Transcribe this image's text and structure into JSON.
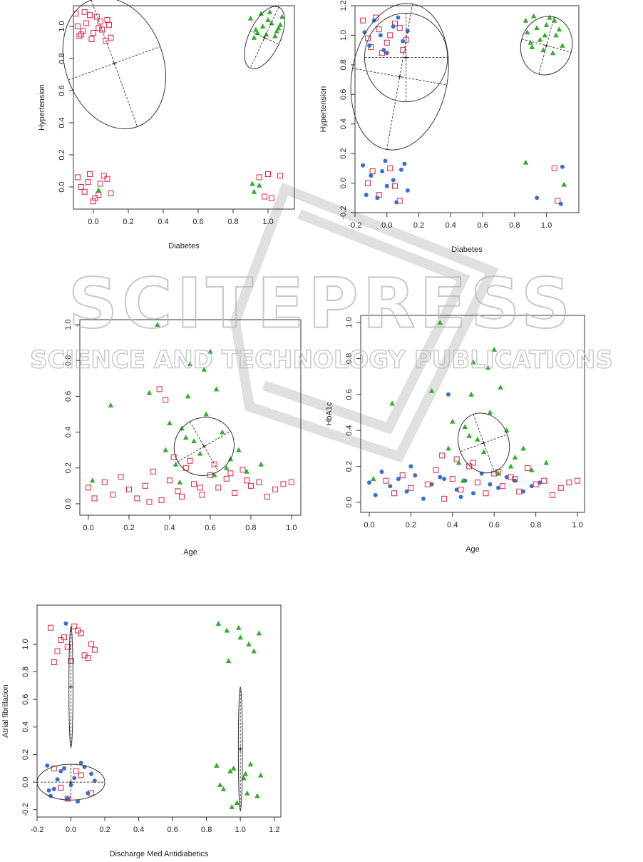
{
  "watermark": {
    "title": "SCITEPRESS",
    "subtitle": "SCIENCE AND TECHNOLOGY PUBLICATIONS"
  },
  "chart_data": [
    {
      "type": "scatter",
      "xlabel": "Diabetes",
      "ylabel": "Hypertension",
      "xlim": [
        -0.114,
        1.151
      ],
      "ylim": [
        -0.138,
        1.129
      ],
      "xticks": [
        {
          "value": 0,
          "label": "0.0"
        },
        0.2,
        0.4,
        0.6,
        0.8,
        {
          "value": 1,
          "label": "1.0"
        }
      ],
      "yticks": [
        {
          "value": 0,
          "label": "0.0"
        },
        0.2,
        0.4,
        0.6,
        0.8,
        {
          "value": 1,
          "label": "1.0"
        }
      ],
      "series": [
        {
          "color": "#d8253f",
          "marker": "square",
          "x": [
            -0.1,
            -0.07,
            -0.04,
            -0.01,
            0.02,
            0.05,
            0.08,
            0.1,
            -0.09,
            -0.05,
            0.0,
            0.04,
            0.07,
            -0.08,
            -0.02,
            0.03,
            0.09,
            -0.06,
            -0.09,
            -0.05,
            -0.02,
            0.01,
            0.04,
            0.08,
            0.1,
            -0.07,
            0.0,
            0.06,
            -0.03,
            0.03,
            0.95,
            1.0,
            1.02,
            1.07,
            0.98
          ],
          "y": [
            1.08,
            0.95,
            1.02,
            0.92,
            1.06,
            0.98,
            1.04,
            0.93,
            1.0,
            1.09,
            0.96,
            1.03,
            0.91,
            0.94,
            1.07,
            0.99,
            1.01,
            0.97,
            0.06,
            -0.03,
            0.08,
            -0.07,
            0.02,
            0.05,
            -0.04,
            0.0,
            -0.09,
            0.07,
            0.03,
            -0.05,
            0.06,
            0.08,
            -0.07,
            0.07,
            -0.06
          ]
        },
        {
          "color": "#33ad2f",
          "marker": "triangle",
          "x": [
            0.9,
            0.93,
            0.96,
            0.99,
            1.02,
            1.05,
            1.08,
            0.92,
            0.97,
            1.01,
            1.04,
            1.07,
            0.94,
            1.0,
            1.06,
            0.91,
            0.92,
            0.95,
            0.03
          ],
          "y": [
            1.05,
            0.98,
            1.08,
            0.95,
            1.02,
            0.97,
            1.06,
            0.93,
            1.0,
            1.09,
            0.94,
            1.01,
            0.96,
            1.04,
            0.99,
            0.02,
            -0.03,
            0.01,
            -0.02
          ]
        }
      ],
      "ellipses": [
        {
          "cx": 0.12,
          "cy": 0.77,
          "rx": 0.28,
          "ry": 0.42,
          "angle": -20
        },
        {
          "cx": 0.98,
          "cy": 0.93,
          "rx": 0.09,
          "ry": 0.21,
          "angle": 25
        }
      ]
    },
    {
      "type": "scatter",
      "xlabel": "Diabetes",
      "ylabel": "Hypertension",
      "xlim": [
        -0.2,
        1.203
      ],
      "ylim": [
        -0.2,
        1.2
      ],
      "xticks": [
        -0.2,
        {
          "value": 0,
          "label": "0.0"
        },
        0.2,
        0.4,
        0.6,
        0.8,
        {
          "value": 1,
          "label": "1.0"
        }
      ],
      "yticks": [
        -0.2,
        {
          "value": 0,
          "label": "0.0"
        },
        0.2,
        0.4,
        0.6,
        0.8,
        {
          "value": 1,
          "label": "1.0"
        },
        1.2
      ],
      "series": [
        {
          "color": "#d8253f",
          "marker": "square",
          "x": [
            -0.15,
            -0.1,
            -0.05,
            0.0,
            0.05,
            0.1,
            -0.12,
            -0.07,
            0.02,
            0.08,
            -0.03,
            0.12,
            -0.12,
            -0.05,
            0.02,
            0.08,
            -0.09,
            0.05,
            1.07,
            1.05
          ],
          "y": [
            1.1,
            0.92,
            1.04,
            0.95,
            1.08,
            0.9,
            0.98,
            1.12,
            1.0,
            1.05,
            0.88,
            0.97,
            0.0,
            -0.08,
            0.1,
            -0.12,
            0.08,
            -0.02,
            -0.12,
            0.1
          ]
        },
        {
          "color": "#3a6fd0",
          "marker": "circle",
          "x": [
            -0.14,
            -0.08,
            -0.02,
            0.04,
            0.1,
            -0.11,
            -0.04,
            0.07,
            0.13,
            0.0,
            -0.15,
            -0.1,
            -0.06,
            -0.01,
            0.04,
            0.09,
            0.13,
            -0.13,
            -0.03,
            0.06,
            0.11,
            0.0,
            0.94,
            1.1,
            1.09
          ],
          "y": [
            1.02,
            1.1,
            0.9,
            1.06,
            0.96,
            0.93,
            1.0,
            1.12,
            1.03,
            0.88,
            0.12,
            0.05,
            -0.1,
            0.15,
            0.02,
            0.09,
            -0.05,
            -0.08,
            0.08,
            -0.13,
            0.13,
            -0.02,
            -0.1,
            0.11,
            -0.14
          ]
        },
        {
          "color": "#33ad2f",
          "marker": "triangle",
          "x": [
            0.87,
            0.9,
            0.94,
            0.98,
            1.02,
            1.06,
            1.1,
            0.88,
            0.92,
            0.96,
            1.0,
            1.04,
            1.08,
            0.91,
            0.99,
            1.05,
            0.87,
            1.11
          ],
          "y": [
            1.1,
            0.95,
            1.05,
            0.9,
            1.12,
            1.0,
            0.93,
            1.02,
            1.13,
            0.97,
            1.07,
            0.88,
            1.04,
            0.92,
            1.0,
            1.1,
            0.14,
            -0.01
          ]
        }
      ],
      "ellipses": [
        {
          "cx": 0.08,
          "cy": 0.72,
          "rx": 0.3,
          "ry": 0.5,
          "angle": 10
        },
        {
          "cx": 0.12,
          "cy": 0.85,
          "rx": 0.26,
          "ry": 0.3,
          "angle": 0
        },
        {
          "cx": 1.0,
          "cy": 0.93,
          "rx": 0.16,
          "ry": 0.2,
          "angle": 15
        }
      ]
    },
    {
      "type": "scatter",
      "xlabel": "Age",
      "xlim": [
        -0.042,
        1.046
      ],
      "ylim": [
        -0.064,
        1.028
      ],
      "xticks": [
        {
          "value": 0,
          "label": "0.0"
        },
        0.2,
        0.4,
        0.6,
        0.8,
        {
          "value": 1,
          "label": "1.0"
        }
      ],
      "yticks": [
        {
          "value": 0,
          "label": "0.0"
        },
        0.2,
        0.4,
        0.6,
        0.8,
        {
          "value": 1,
          "label": "1.0"
        }
      ],
      "series": [
        {
          "color": "#d8253f",
          "marker": "square",
          "x": [
            0.0,
            0.03,
            0.08,
            0.12,
            0.16,
            0.2,
            0.24,
            0.28,
            0.32,
            0.36,
            0.4,
            0.44,
            0.48,
            0.52,
            0.56,
            0.6,
            0.64,
            0.68,
            0.72,
            0.76,
            0.8,
            0.84,
            0.88,
            0.92,
            0.96,
            1.0,
            0.35,
            0.38,
            0.42,
            0.5,
            0.55,
            0.62,
            0.7,
            0.78,
            0.3,
            0.46
          ],
          "y": [
            0.09,
            0.03,
            0.12,
            0.05,
            0.15,
            0.08,
            0.03,
            0.1,
            0.18,
            0.02,
            0.13,
            0.07,
            0.2,
            0.11,
            0.05,
            0.16,
            0.09,
            0.14,
            0.06,
            0.19,
            0.1,
            0.12,
            0.04,
            0.08,
            0.11,
            0.12,
            0.64,
            0.58,
            0.26,
            0.24,
            0.09,
            0.22,
            0.17,
            0.13,
            0.01,
            0.04
          ]
        },
        {
          "color": "#33ad2f",
          "marker": "triangle",
          "x": [
            0.02,
            0.11,
            0.34,
            0.3,
            0.38,
            0.4,
            0.43,
            0.46,
            0.49,
            0.52,
            0.55,
            0.58,
            0.6,
            0.63,
            0.66,
            0.7,
            0.74,
            0.78,
            0.85,
            0.5,
            0.57,
            0.62,
            0.45,
            0.68,
            0.48
          ],
          "y": [
            0.13,
            0.55,
            1.0,
            0.62,
            0.3,
            0.45,
            0.22,
            0.42,
            0.6,
            0.35,
            0.28,
            0.5,
            0.85,
            0.64,
            0.4,
            0.25,
            0.3,
            0.18,
            0.22,
            0.78,
            0.75,
            0.16,
            0.12,
            0.2,
            0.37
          ]
        }
      ],
      "ellipses": [
        {
          "cx": 0.57,
          "cy": 0.32,
          "rx": 0.15,
          "ry": 0.16,
          "angle": -30
        }
      ]
    },
    {
      "type": "scatter",
      "xlabel": "Age",
      "ylabel": "HbA1c",
      "xlim": [
        -0.041,
        1.034
      ],
      "ylim": [
        -0.056,
        1.04
      ],
      "xticks": [
        {
          "value": 0,
          "label": "0.0"
        },
        0.2,
        0.4,
        0.6,
        0.8,
        {
          "value": 1,
          "label": "1.0"
        }
      ],
      "yticks": [
        {
          "value": 0,
          "label": "0.0"
        },
        0.2,
        0.4,
        0.6,
        0.8,
        {
          "value": 1,
          "label": "1.0"
        }
      ],
      "series": [
        {
          "color": "#3a6fd0",
          "marker": "circle",
          "x": [
            0.0,
            0.03,
            0.06,
            0.1,
            0.14,
            0.18,
            0.22,
            0.26,
            0.3,
            0.34,
            0.38,
            0.42,
            0.46,
            0.5,
            0.54,
            0.58,
            0.62,
            0.66,
            0.7,
            0.74,
            0.78,
            0.82,
            0.2,
            0.36,
            0.44
          ],
          "y": [
            0.11,
            0.04,
            0.17,
            0.09,
            0.13,
            0.06,
            0.15,
            0.02,
            0.1,
            0.14,
            0.6,
            0.07,
            0.12,
            0.05,
            0.16,
            0.1,
            0.08,
            0.14,
            0.12,
            0.06,
            0.09,
            0.11,
            0.2,
            0.13,
            0.03
          ]
        },
        {
          "color": "#d8253f",
          "marker": "square",
          "x": [
            0.08,
            0.12,
            0.16,
            0.2,
            0.28,
            0.32,
            0.36,
            0.4,
            0.44,
            0.48,
            0.52,
            0.56,
            0.6,
            0.64,
            0.68,
            0.72,
            0.76,
            0.8,
            0.84,
            0.88,
            0.92,
            0.96,
            1.0,
            0.35,
            0.42,
            0.5,
            0.62,
            0.7
          ],
          "y": [
            0.12,
            0.05,
            0.15,
            0.08,
            0.1,
            0.18,
            0.02,
            0.13,
            0.07,
            0.2,
            0.11,
            0.05,
            0.16,
            0.09,
            0.14,
            0.06,
            0.19,
            0.1,
            0.12,
            0.04,
            0.08,
            0.11,
            0.12,
            0.26,
            0.24,
            0.22,
            0.17,
            0.13
          ]
        },
        {
          "color": "#33ad2f",
          "marker": "triangle",
          "x": [
            0.02,
            0.11,
            0.34,
            0.3,
            0.38,
            0.4,
            0.43,
            0.46,
            0.49,
            0.52,
            0.55,
            0.58,
            0.6,
            0.63,
            0.66,
            0.7,
            0.74,
            0.78,
            0.85,
            0.5,
            0.57,
            0.62,
            0.45,
            0.68,
            0.48
          ],
          "y": [
            0.13,
            0.55,
            1.0,
            0.62,
            0.3,
            0.45,
            0.22,
            0.42,
            0.6,
            0.35,
            0.28,
            0.5,
            0.85,
            0.64,
            0.4,
            0.25,
            0.3,
            0.18,
            0.22,
            0.78,
            0.75,
            0.16,
            0.12,
            0.2,
            0.37
          ]
        }
      ],
      "ellipses": [
        {
          "cx": 0.55,
          "cy": 0.33,
          "rx": 0.12,
          "ry": 0.17,
          "angle": -20
        }
      ]
    },
    {
      "type": "scatter",
      "xlabel": "Discharge Med Antidiabetics",
      "ylabel": "Atrial fibrillation",
      "xlim": [
        -0.2,
        1.239
      ],
      "ylim": [
        -0.253,
        1.284
      ],
      "xticks": [
        -0.2,
        {
          "value": 0,
          "label": "0.0"
        },
        0.2,
        0.4,
        0.6,
        0.8,
        {
          "value": 1,
          "label": "1.0"
        },
        1.2
      ],
      "yticks": [
        -0.2,
        {
          "value": 0,
          "label": "0.0"
        },
        0.2,
        0.4,
        0.6,
        0.8,
        {
          "value": 1,
          "label": "1.0"
        }
      ],
      "series": [
        {
          "color": "#d8253f",
          "marker": "square",
          "x": [
            -0.12,
            -0.08,
            -0.04,
            0.0,
            0.04,
            0.08,
            0.12,
            -0.1,
            -0.02,
            0.06,
            0.1,
            -0.06,
            0.02,
            0.14,
            -0.1,
            -0.02,
            0.06,
            0.12,
            -0.06,
            0.03
          ],
          "y": [
            1.12,
            0.95,
            1.05,
            0.88,
            1.1,
            0.92,
            1.0,
            0.87,
            0.98,
            1.08,
            0.9,
            1.03,
            1.13,
            0.96,
            0.1,
            -0.12,
            0.05,
            -0.08,
            -0.04,
            0.08
          ]
        },
        {
          "color": "#3a6fd0",
          "marker": "circle",
          "x": [
            -0.14,
            -0.1,
            -0.06,
            -0.02,
            0.02,
            0.06,
            0.1,
            0.14,
            -0.12,
            -0.04,
            0.04,
            0.12,
            -0.08,
            0.0,
            0.08,
            -0.13,
            -0.03
          ],
          "y": [
            0.12,
            -0.05,
            0.08,
            -0.12,
            0.03,
            0.14,
            -0.08,
            0.01,
            -0.1,
            0.1,
            -0.14,
            0.06,
            0.02,
            -0.02,
            0.11,
            -0.06,
            1.15
          ]
        },
        {
          "color": "#33ad2f",
          "marker": "triangle",
          "x": [
            0.86,
            0.9,
            0.94,
            0.98,
            1.02,
            1.06,
            1.1,
            0.88,
            0.96,
            1.04,
            1.12,
            0.92,
            1.0,
            1.08,
            0.87,
            0.93,
            0.99,
            1.05,
            1.11,
            0.95,
            1.03
          ],
          "y": [
            0.12,
            -0.05,
            0.08,
            -0.15,
            0.03,
            0.13,
            -0.1,
            -0.02,
            0.1,
            -0.08,
            0.05,
            1.1,
            1.05,
            0.95,
            1.15,
            0.88,
            1.12,
            1.0,
            1.08,
            -0.18,
            0.06
          ]
        }
      ],
      "ellipses": [
        {
          "cx": 0.0,
          "cy": 0.69,
          "rx": 0.012,
          "ry": 0.44,
          "angle": 0
        },
        {
          "cx": 1.0,
          "cy": 0.24,
          "rx": 0.012,
          "ry": 0.45,
          "angle": 0
        },
        {
          "cx": 0.0,
          "cy": 0.0,
          "rx": 0.2,
          "ry": 0.13,
          "angle": 0
        }
      ]
    }
  ]
}
